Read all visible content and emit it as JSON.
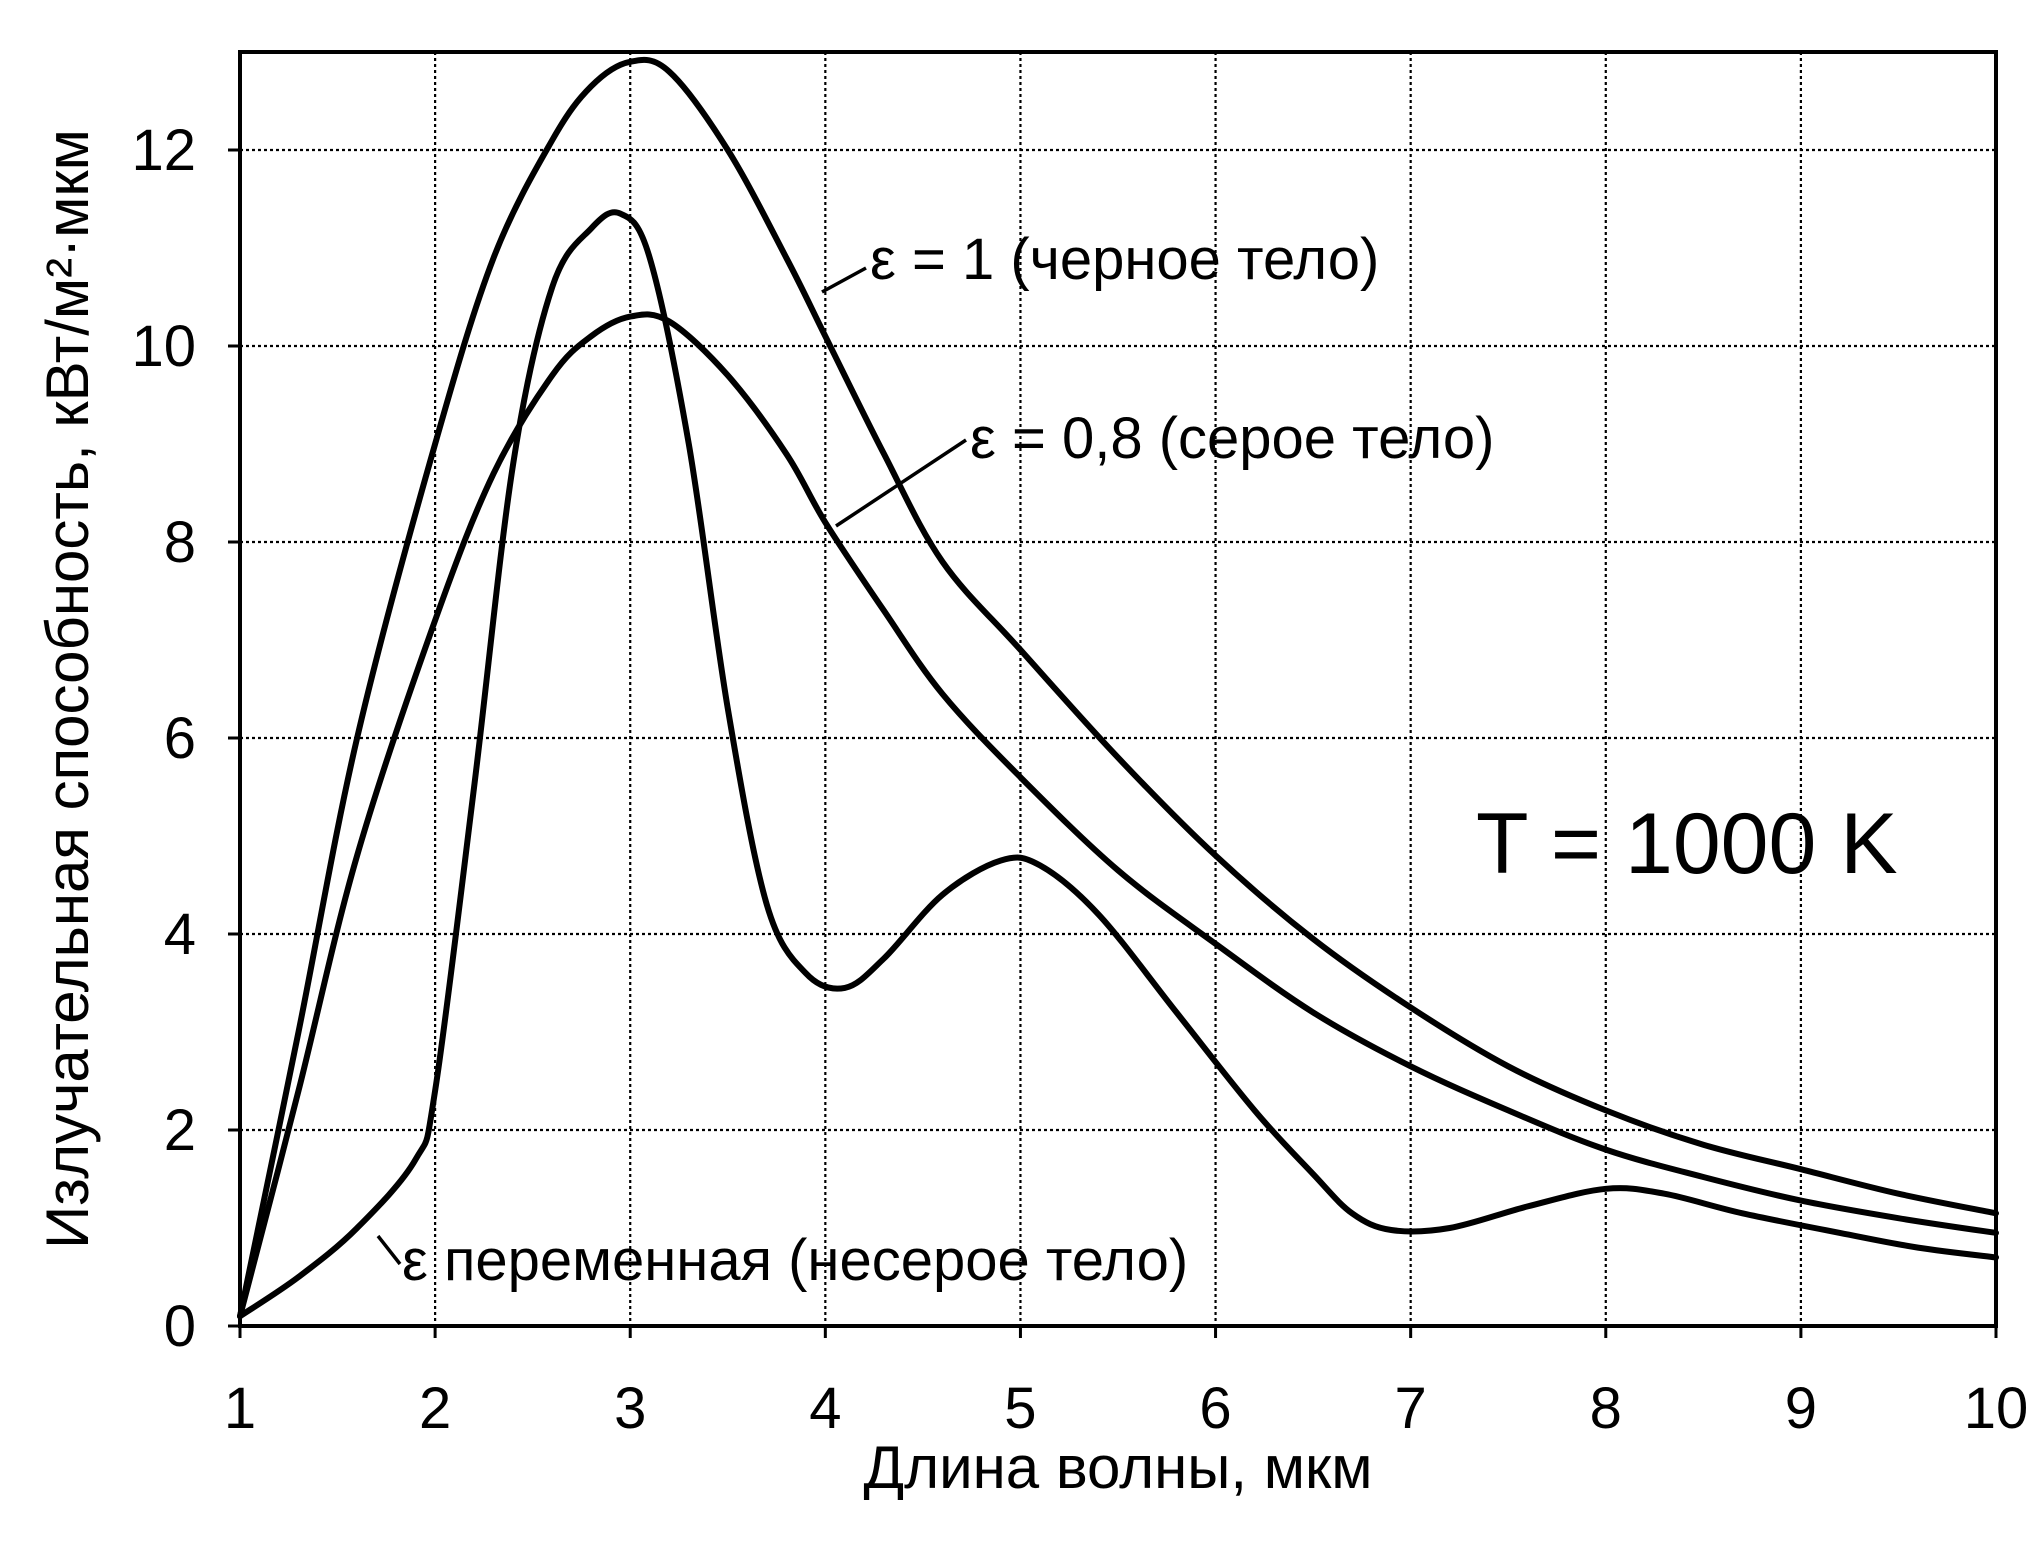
{
  "chart_data": {
    "type": "line",
    "xlabel": "Длина волны, мкм",
    "ylabel": "Излучательная способность, кВт/м²·мкм",
    "xlim": [
      1,
      10
    ],
    "ylim": [
      0,
      13
    ],
    "xticks": [
      1,
      2,
      3,
      4,
      5,
      6,
      7,
      8,
      9,
      10
    ],
    "yticks": [
      0,
      2,
      4,
      6,
      8,
      10,
      12
    ],
    "xtick_labels": [
      "1",
      "2",
      "3",
      "4",
      "5",
      "6",
      "7",
      "8",
      "9",
      "10"
    ],
    "ytick_labels": [
      "0",
      "2",
      "4",
      "6",
      "8",
      "10",
      "12"
    ],
    "grid": true,
    "annotations": {
      "temperature": "T = 1000 K"
    },
    "series": [
      {
        "name": "ε = 1 (черное тело)",
        "points": [
          [
            1.0,
            0.1
          ],
          [
            1.3,
            3.0
          ],
          [
            1.6,
            6.0
          ],
          [
            2.0,
            9.0
          ],
          [
            2.3,
            10.9
          ],
          [
            2.6,
            12.1
          ],
          [
            2.8,
            12.65
          ],
          [
            3.0,
            12.9
          ],
          [
            3.2,
            12.8
          ],
          [
            3.5,
            12.0
          ],
          [
            3.8,
            10.9
          ],
          [
            4.0,
            10.1
          ],
          [
            4.3,
            8.9
          ],
          [
            4.6,
            7.8
          ],
          [
            5.0,
            6.9
          ],
          [
            5.5,
            5.8
          ],
          [
            6.0,
            4.8
          ],
          [
            6.5,
            3.95
          ],
          [
            7.0,
            3.25
          ],
          [
            7.5,
            2.65
          ],
          [
            8.0,
            2.2
          ],
          [
            8.5,
            1.85
          ],
          [
            9.0,
            1.6
          ],
          [
            9.5,
            1.35
          ],
          [
            10.0,
            1.15
          ]
        ]
      },
      {
        "name": "ε = 0,8 (серое тело)",
        "points": [
          [
            1.0,
            0.1
          ],
          [
            1.3,
            2.4
          ],
          [
            1.6,
            4.8
          ],
          [
            2.0,
            7.2
          ],
          [
            2.3,
            8.7
          ],
          [
            2.6,
            9.7
          ],
          [
            2.8,
            10.1
          ],
          [
            3.0,
            10.3
          ],
          [
            3.2,
            10.25
          ],
          [
            3.5,
            9.7
          ],
          [
            3.8,
            8.9
          ],
          [
            4.0,
            8.2
          ],
          [
            4.3,
            7.3
          ],
          [
            4.6,
            6.45
          ],
          [
            5.0,
            5.6
          ],
          [
            5.5,
            4.65
          ],
          [
            6.0,
            3.9
          ],
          [
            6.5,
            3.2
          ],
          [
            7.0,
            2.65
          ],
          [
            7.5,
            2.2
          ],
          [
            8.0,
            1.8
          ],
          [
            8.5,
            1.52
          ],
          [
            9.0,
            1.28
          ],
          [
            9.5,
            1.1
          ],
          [
            10.0,
            0.95
          ]
        ]
      },
      {
        "name": "ε переменная (несерое тело)",
        "points": [
          [
            1.0,
            0.1
          ],
          [
            1.3,
            0.5
          ],
          [
            1.6,
            1.0
          ],
          [
            1.9,
            1.7
          ],
          [
            2.0,
            2.4
          ],
          [
            2.2,
            5.5
          ],
          [
            2.4,
            8.8
          ],
          [
            2.6,
            10.6
          ],
          [
            2.8,
            11.2
          ],
          [
            2.95,
            11.35
          ],
          [
            3.1,
            10.9
          ],
          [
            3.3,
            9.0
          ],
          [
            3.5,
            6.3
          ],
          [
            3.7,
            4.3
          ],
          [
            3.9,
            3.6
          ],
          [
            4.1,
            3.45
          ],
          [
            4.3,
            3.75
          ],
          [
            4.6,
            4.4
          ],
          [
            4.9,
            4.75
          ],
          [
            5.1,
            4.7
          ],
          [
            5.4,
            4.2
          ],
          [
            5.8,
            3.2
          ],
          [
            6.2,
            2.2
          ],
          [
            6.5,
            1.55
          ],
          [
            6.7,
            1.15
          ],
          [
            6.9,
            0.98
          ],
          [
            7.2,
            1.0
          ],
          [
            7.6,
            1.22
          ],
          [
            8.0,
            1.4
          ],
          [
            8.3,
            1.35
          ],
          [
            8.7,
            1.15
          ],
          [
            9.2,
            0.95
          ],
          [
            9.6,
            0.8
          ],
          [
            10.0,
            0.7
          ]
        ]
      }
    ]
  }
}
